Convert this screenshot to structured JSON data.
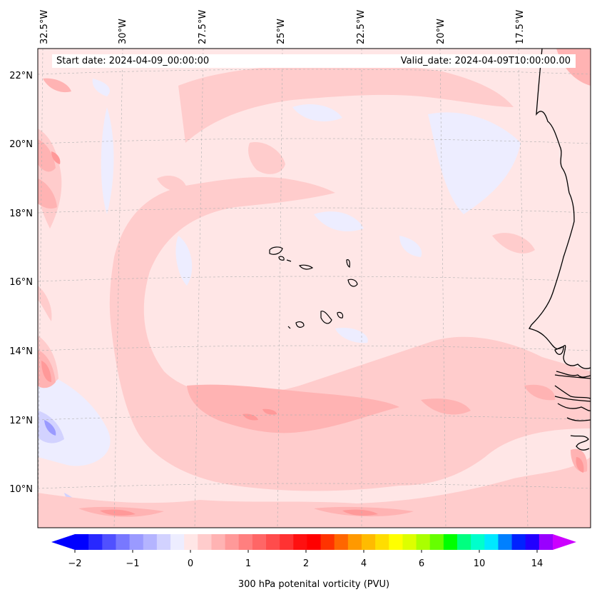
{
  "map": {
    "start_date": "Start date: 2024-04-09_00:00:00",
    "valid_date": "Valid_date: 2024-04-09T10:00:00.00",
    "lon_labels": [
      "32.5°W",
      "30°W",
      "27.5°W",
      "25°W",
      "22.5°W",
      "20°W",
      "17.5°W"
    ],
    "lat_labels": [
      "22°N",
      "20°N",
      "18°N",
      "16°N",
      "14°N",
      "12°N",
      "10°N"
    ],
    "background_color": "#ffe6e6",
    "coast_color": "#000000"
  },
  "colorbar": {
    "label": "300 hPa potenital vorticity (PVU)",
    "tick_labels": [
      "−2",
      "−1",
      "0",
      "1",
      "2",
      "4",
      "6",
      "10",
      "14"
    ],
    "colors": [
      "#0000ff",
      "#2828ff",
      "#5050ff",
      "#7878ff",
      "#9a9aff",
      "#b4b4ff",
      "#d2d2ff",
      "#ededff",
      "#ffe6e6",
      "#ffcccc",
      "#ffb3b3",
      "#ff9999",
      "#ff7f7f",
      "#ff6666",
      "#ff4c4c",
      "#ff3232",
      "#ff1010",
      "#ff0000",
      "#ff3300",
      "#ff6600",
      "#ff9900",
      "#ffbb00",
      "#ffdd00",
      "#ffff00",
      "#ddff00",
      "#aaff00",
      "#66ff00",
      "#00ff00",
      "#00ff80",
      "#00ffcc",
      "#00e8ff",
      "#0080ff",
      "#0022ff",
      "#2200ff",
      "#9900ff"
    ],
    "min_extend_color": "#0000ff",
    "max_extend_color": "#cc00ff"
  }
}
